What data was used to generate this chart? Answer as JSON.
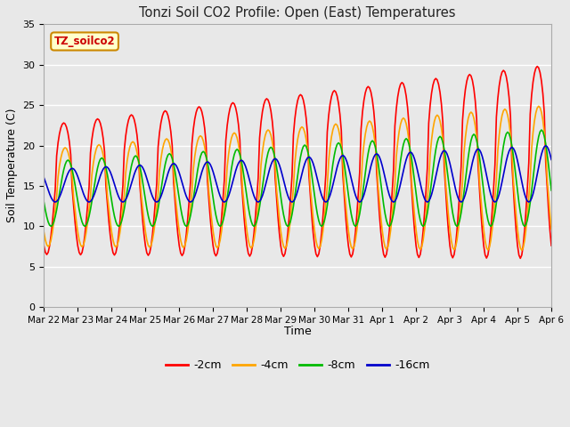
{
  "title": "Tonzi Soil CO2 Profile: Open (East) Temperatures",
  "ylabel": "Soil Temperature (C)",
  "xlabel": "Time",
  "legend_label": "TZ_soilco2",
  "series_labels": [
    "-2cm",
    "-4cm",
    "-8cm",
    "-16cm"
  ],
  "series_colors": [
    "#ff0000",
    "#ffa500",
    "#00bb00",
    "#0000cc"
  ],
  "ylim": [
    0,
    35
  ],
  "plot_bg_color": "#e8e8e8",
  "grid_color": "#ffffff",
  "fig_bg_color": "#e8e8e8"
}
